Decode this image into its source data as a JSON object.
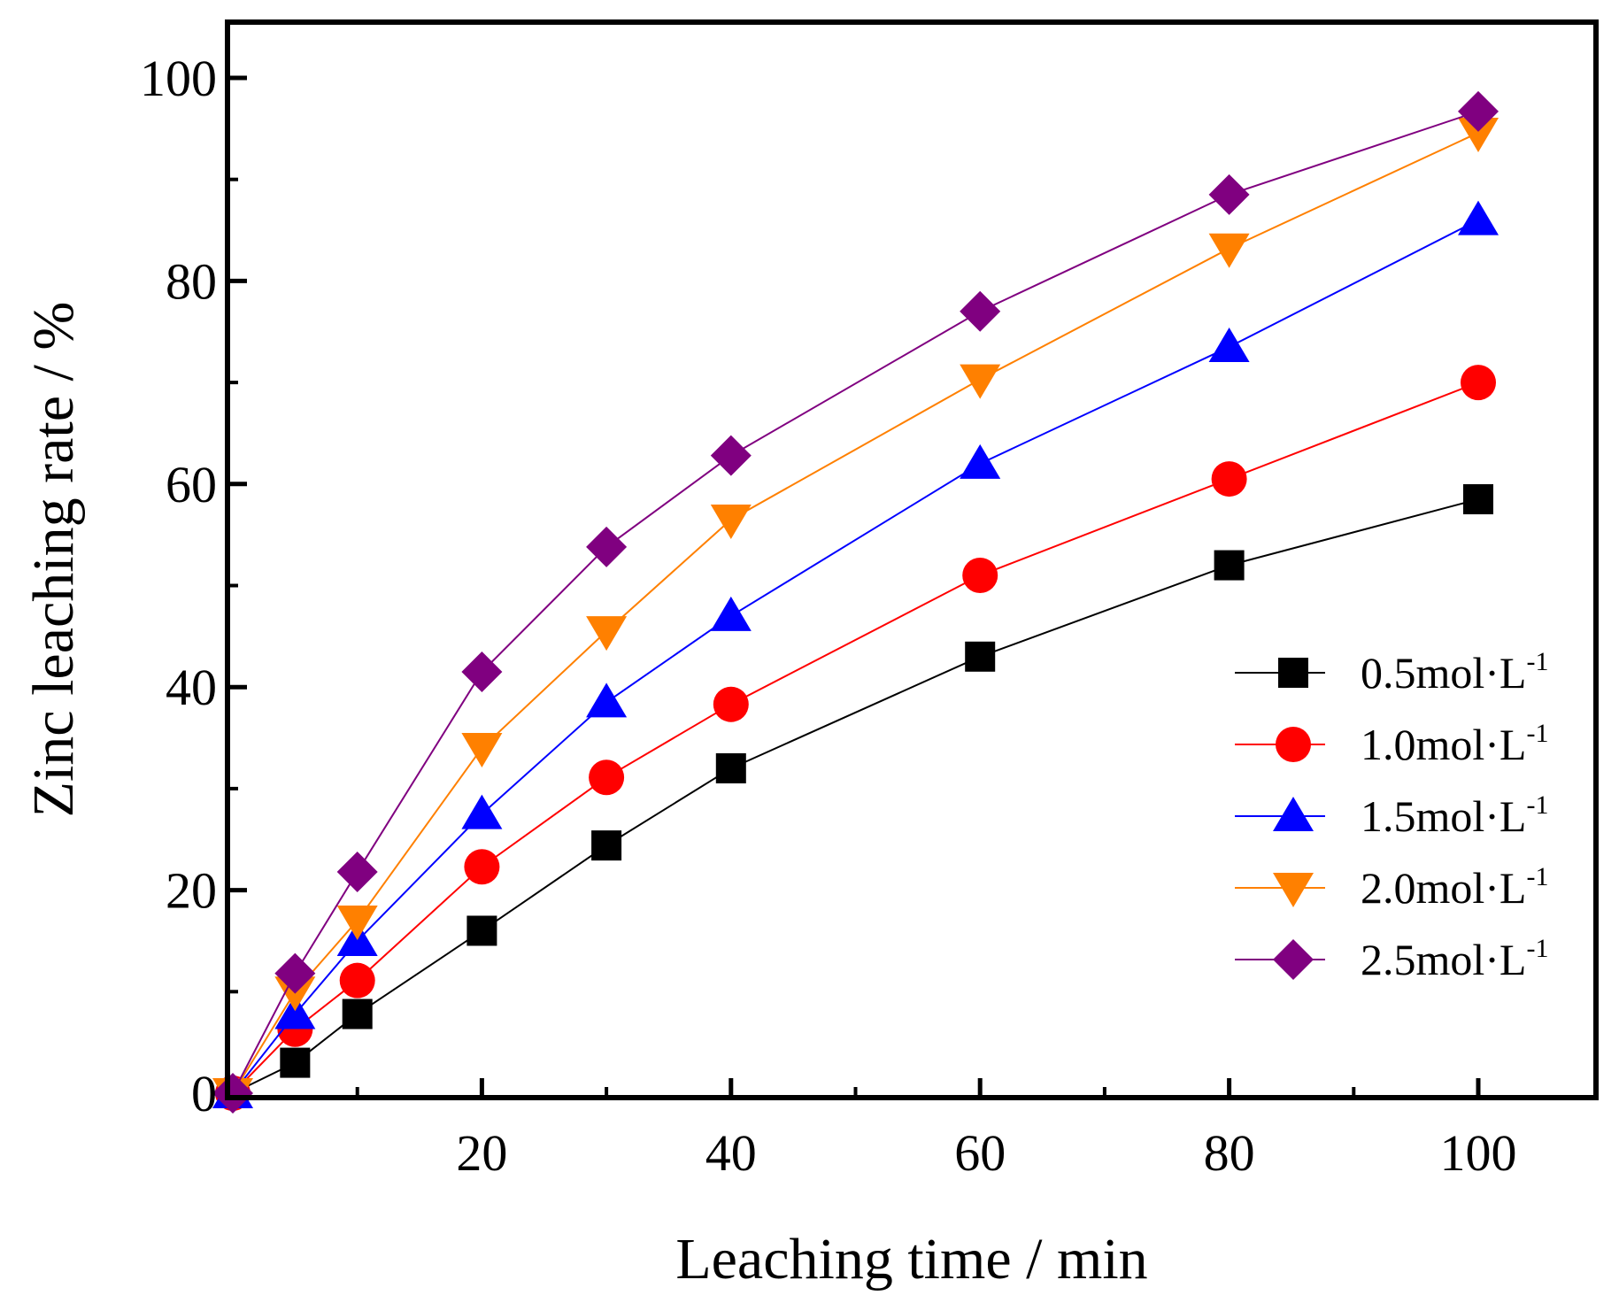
{
  "chart_data": {
    "type": "line",
    "xlabel": "Leaching time / min",
    "ylabel": "Zinc leaching rate / %",
    "xlim": [
      0,
      110
    ],
    "ylim": [
      0,
      105
    ],
    "xticks": [
      20,
      40,
      60,
      80,
      100
    ],
    "xtick_labels": [
      "20",
      "40",
      "60",
      "80",
      "100"
    ],
    "yticks": [
      0,
      20,
      40,
      60,
      80,
      100
    ],
    "ytick_labels": [
      "0",
      "20",
      "40",
      "60",
      "80",
      "100"
    ],
    "x_minor_ticks": [
      10,
      30,
      50,
      70,
      90
    ],
    "y_minor_ticks": [
      10,
      30,
      50,
      70,
      90
    ],
    "legend_position": "center-right",
    "x": [
      0,
      5,
      10,
      20,
      30,
      40,
      60,
      80,
      100
    ],
    "series": [
      {
        "name": "0.5mol·L",
        "sup": "-1",
        "color": "#000000",
        "marker": "square",
        "values": [
          0,
          3,
          7.8,
          16,
          24.4,
          32,
          43,
          52,
          58.5
        ]
      },
      {
        "name": "1.0mol·L",
        "sup": "-1",
        "color": "#ff0000",
        "marker": "circle",
        "values": [
          0,
          6.3,
          11.1,
          22.3,
          31.1,
          38.3,
          51,
          60.5,
          70
        ]
      },
      {
        "name": "1.5mol·L",
        "sup": "-1",
        "color": "#0000ff",
        "marker": "triangle-up",
        "values": [
          0,
          7.8,
          15,
          27.5,
          38.5,
          47,
          62,
          73.5,
          86
        ]
      },
      {
        "name": "2.0mol·L",
        "sup": "-1",
        "color": "#ff8000",
        "marker": "triangle-down",
        "values": [
          0,
          10,
          17,
          34,
          45.5,
          56.5,
          70.3,
          83.2,
          94.6
        ]
      },
      {
        "name": "2.5mol·L",
        "sup": "-1",
        "color": "#800080",
        "marker": "diamond",
        "values": [
          0,
          11.8,
          21.8,
          41.5,
          53.8,
          62.8,
          77,
          88.5,
          96.7
        ]
      }
    ]
  }
}
